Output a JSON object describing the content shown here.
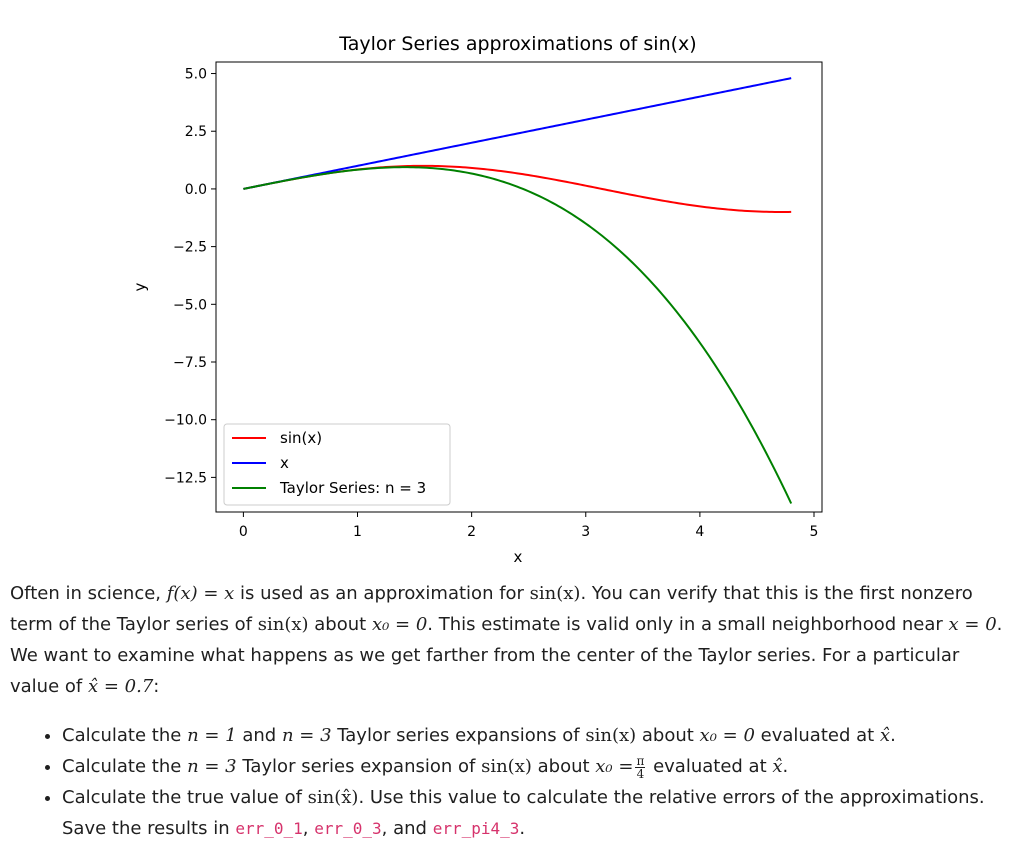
{
  "chart_data": {
    "type": "line",
    "title": "Taylor Series approximations of sin(x)",
    "xlabel": "x",
    "ylabel": "y",
    "xlim": [
      -0.24,
      5.07
    ],
    "ylim": [
      -14.0,
      5.5
    ],
    "xticks": [
      "0",
      "1",
      "2",
      "3",
      "4",
      "5"
    ],
    "xtick_values": [
      0,
      1,
      2,
      3,
      4,
      5
    ],
    "yticks": [
      "5.0",
      "2.5",
      "0.0",
      "−2.5",
      "−5.0",
      "−7.5",
      "−10.0",
      "−12.5"
    ],
    "ytick_values": [
      5.0,
      2.5,
      0.0,
      -2.5,
      -5.0,
      -7.5,
      -10.0,
      -12.5
    ],
    "x_range": [
      0,
      4.8
    ],
    "legend_position": "lower-left",
    "series": [
      {
        "name": "sin(x)",
        "color": "#ff0000",
        "function": "sin",
        "x": [
          0,
          0.5,
          1.0,
          1.5,
          2.0,
          2.5,
          3.0,
          3.5,
          4.0,
          4.5,
          4.8
        ],
        "y": [
          0,
          0.479,
          0.841,
          0.997,
          0.909,
          0.598,
          0.141,
          -0.351,
          -0.757,
          -0.978,
          -0.996
        ]
      },
      {
        "name": "x",
        "color": "#0000ff",
        "function": "identity",
        "x": [
          0,
          4.8
        ],
        "y": [
          0,
          4.8
        ]
      },
      {
        "name": "Taylor Series: n = 3",
        "color": "#008000",
        "function": "taylor3",
        "x": [
          0,
          0.5,
          1.0,
          1.5,
          2.0,
          2.5,
          3.0,
          3.5,
          4.0,
          4.5,
          4.8
        ],
        "y": [
          0,
          0.479,
          0.833,
          0.938,
          0.667,
          -0.104,
          -1.5,
          -3.646,
          -6.667,
          -10.688,
          -13.632
        ]
      }
    ]
  },
  "text": {
    "p1": {
      "a": "Often in science, ",
      "m1": "f(x) = x",
      "b": " is used as an approximation for ",
      "m2": "sin(x)",
      "c": ". You can verify that this is the first nonzero term of the Taylor series of ",
      "m3": "sin(x)",
      "d": " about ",
      "m4": "x₀ = 0",
      "e": ". This estimate is valid only in a small neighborhood near ",
      "m5": "x = 0",
      "f": ". We want to examine what happens as we get farther from the center of the Taylor series. For a particular value of ",
      "m6": "x̂ = 0.7",
      "g": ":"
    },
    "li1": {
      "a": "Calculate the ",
      "m1": "n = 1",
      "b": " and ",
      "m2": "n = 3",
      "c": " Taylor series expansions of ",
      "m3": "sin(x)",
      "d": " about ",
      "m4": "x₀ = 0",
      "e": " evaluated at ",
      "m5": "x̂",
      "f": "."
    },
    "li2": {
      "a": "Calculate the ",
      "m1": "n = 3",
      "b": " Taylor series expansion of ",
      "m2": "sin(x)",
      "c": " about ",
      "m3": "x₀ =",
      "frac_num": "π",
      "frac_den": "4",
      "d": " evaluated at ",
      "m4": "x̂",
      "e": "."
    },
    "li3": {
      "a": "Calculate the true value of ",
      "m1": "sin(x̂)",
      "b": ". Use this value to calculate the relative errors of the approximations. Save the results in ",
      "code1": "err_0_1",
      "sep1": ", ",
      "code2": "err_0_3",
      "sep2": ", and ",
      "code3": "err_pi4_3",
      "c": "."
    }
  }
}
